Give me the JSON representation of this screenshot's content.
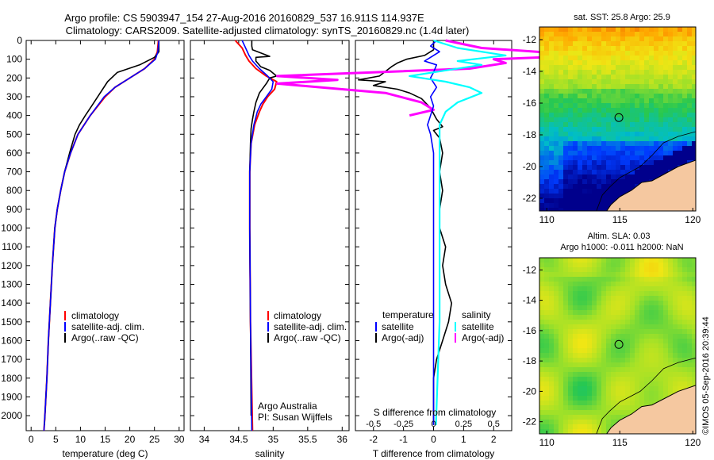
{
  "header": {
    "line1": "Argo profile: CS 5903947_154 27-Aug-2016 20160829_537 16.911S 114.937E",
    "line2": "Climatology: CARS2009. Satellite-adjusted climatology: synTS_20160829.nc (1.4d later)"
  },
  "colors": {
    "climatology": "#ff0000",
    "satellite": "#0000ff",
    "argo": "#000000",
    "sal_satellite": "#00ffff",
    "sal_argo": "#ff00ff",
    "land": "#f5c8a0"
  },
  "chart_data": [
    {
      "type": "line",
      "xlabel": "temperature (deg C)",
      "ylabel": "",
      "xlim": [
        -1,
        31
      ],
      "ylim": [
        2080,
        0
      ],
      "xticks": [
        "0",
        "5",
        "10",
        "15",
        "20",
        "25",
        "30"
      ],
      "yticks": [
        "0",
        "100",
        "200",
        "300",
        "400",
        "500",
        "600",
        "700",
        "800",
        "900",
        "1000",
        "1100",
        "1200",
        "1300",
        "1400",
        "1500",
        "1600",
        "1700",
        "1800",
        "1900",
        "2000"
      ],
      "legend": [
        "climatology",
        "satellite-adj. clim.",
        "Argo(..raw -QC)"
      ],
      "series": [
        {
          "name": "climatology",
          "points": [
            [
              25.8,
              0
            ],
            [
              25.6,
              60
            ],
            [
              25.0,
              100
            ],
            [
              23.0,
              150
            ],
            [
              20.0,
              200
            ],
            [
              17.0,
              250
            ],
            [
              15.0,
              300
            ],
            [
              12.0,
              400
            ],
            [
              9.5,
              500
            ],
            [
              8.0,
              600
            ],
            [
              6.8,
              700
            ],
            [
              6.0,
              800
            ],
            [
              5.3,
              900
            ],
            [
              4.8,
              1000
            ],
            [
              4.3,
              1200
            ],
            [
              3.9,
              1400
            ],
            [
              3.5,
              1600
            ],
            [
              3.2,
              1800
            ],
            [
              2.8,
              2000
            ],
            [
              2.6,
              2080
            ]
          ]
        },
        {
          "name": "satellite-adj. clim.",
          "points": [
            [
              25.9,
              0
            ],
            [
              25.7,
              60
            ],
            [
              25.2,
              100
            ],
            [
              23.0,
              150
            ],
            [
              20.0,
              200
            ],
            [
              17.0,
              250
            ],
            [
              14.8,
              300
            ],
            [
              12.0,
              400
            ],
            [
              9.5,
              500
            ],
            [
              8.0,
              600
            ],
            [
              6.8,
              700
            ],
            [
              6.0,
              800
            ],
            [
              5.3,
              900
            ],
            [
              4.8,
              1000
            ],
            [
              4.3,
              1200
            ],
            [
              3.9,
              1400
            ],
            [
              3.5,
              1600
            ],
            [
              3.2,
              1800
            ],
            [
              2.8,
              2000
            ],
            [
              2.6,
              2080
            ]
          ]
        },
        {
          "name": "Argo(..raw -QC)",
          "points": [
            [
              25.9,
              0
            ],
            [
              25.9,
              60
            ],
            [
              25.0,
              90
            ],
            [
              22.0,
              130
            ],
            [
              17.5,
              170
            ],
            [
              15.5,
              220
            ],
            [
              14.0,
              280
            ],
            [
              12.5,
              340
            ],
            [
              11.0,
              400
            ],
            [
              9.8,
              450
            ],
            [
              8.9,
              500
            ],
            [
              7.8,
              600
            ],
            [
              6.8,
              700
            ],
            [
              6.0,
              800
            ],
            [
              5.3,
              900
            ],
            [
              4.8,
              1000
            ],
            [
              4.3,
              1200
            ],
            [
              3.9,
              1400
            ],
            [
              3.5,
              1600
            ],
            [
              3.2,
              1800
            ],
            [
              2.8,
              2000
            ],
            [
              2.7,
              2050
            ]
          ]
        }
      ]
    },
    {
      "type": "line",
      "xlabel": "salinity",
      "xlim": [
        33.8,
        36.1
      ],
      "ylim": [
        2080,
        0
      ],
      "xticks": [
        "34",
        "34.5",
        "35",
        "35.5",
        "36"
      ],
      "legend": [
        "climatology",
        "satellite-adj. clim.",
        "Argo(..raw -QC)"
      ],
      "annotations": [
        "Argo Australia",
        "PI: Susan Wijffels"
      ],
      "series": [
        {
          "name": "climatology",
          "points": [
            [
              34.45,
              0
            ],
            [
              34.55,
              40
            ],
            [
              34.6,
              80
            ],
            [
              34.65,
              110
            ],
            [
              34.75,
              150
            ],
            [
              34.9,
              190
            ],
            [
              35.05,
              220
            ],
            [
              35.02,
              260
            ],
            [
              34.92,
              300
            ],
            [
              34.85,
              340
            ],
            [
              34.8,
              380
            ],
            [
              34.73,
              450
            ],
            [
              34.68,
              550
            ],
            [
              34.66,
              700
            ],
            [
              34.66,
              1000
            ],
            [
              34.67,
              1500
            ],
            [
              34.7,
              2080
            ]
          ]
        },
        {
          "name": "satellite-adj. clim.",
          "points": [
            [
              34.55,
              0
            ],
            [
              34.6,
              40
            ],
            [
              34.65,
              80
            ],
            [
              34.7,
              110
            ],
            [
              34.8,
              150
            ],
            [
              34.92,
              190
            ],
            [
              35.0,
              220
            ],
            [
              34.98,
              260
            ],
            [
              34.9,
              300
            ],
            [
              34.82,
              340
            ],
            [
              34.77,
              380
            ],
            [
              34.72,
              450
            ],
            [
              34.68,
              550
            ],
            [
              34.66,
              700
            ],
            [
              34.66,
              1000
            ],
            [
              34.67,
              1500
            ],
            [
              34.69,
              2080
            ]
          ]
        },
        {
          "name": "Argo(..raw -QC)",
          "points": [
            [
              34.69,
              0
            ],
            [
              34.69,
              30
            ],
            [
              34.7,
              50
            ],
            [
              34.95,
              85
            ],
            [
              34.75,
              90
            ],
            [
              34.75,
              110
            ],
            [
              34.82,
              140
            ],
            [
              34.95,
              160
            ],
            [
              35.05,
              190
            ],
            [
              34.95,
              200
            ],
            [
              34.9,
              230
            ],
            [
              34.8,
              280
            ],
            [
              34.75,
              330
            ],
            [
              34.72,
              380
            ],
            [
              34.7,
              420
            ],
            [
              34.68,
              470
            ],
            [
              34.67,
              550
            ],
            [
              34.66,
              700
            ],
            [
              34.66,
              1000
            ],
            [
              34.67,
              1500
            ],
            [
              34.68,
              2000
            ]
          ]
        }
      ]
    },
    {
      "type": "line",
      "xlabel": "T difference from climatology",
      "toplabel": "S difference from climatology",
      "xlim": [
        -2.6,
        2.6
      ],
      "ylim": [
        2080,
        0
      ],
      "xticks": [
        "-2",
        "-1",
        "0",
        "1",
        "2"
      ],
      "sticks": [
        "-0.5",
        "-0.25",
        "0",
        "0.25",
        "0.5"
      ],
      "legend_temperature": [
        "temperature",
        "satellite",
        "Argo(-adj)"
      ],
      "legend_salinity": [
        "salinity",
        "satellite",
        "Argo(-adj)"
      ],
      "series": [
        {
          "name": "satellite",
          "group": "temperature",
          "points": [
            [
              0.1,
              0
            ],
            [
              -0.1,
              30
            ],
            [
              0.2,
              60
            ],
            [
              -0.1,
              90
            ],
            [
              -0.3,
              110
            ],
            [
              0.1,
              130
            ],
            [
              0.0,
              170
            ],
            [
              -0.1,
              200
            ],
            [
              0.1,
              250
            ],
            [
              -0.1,
              300
            ],
            [
              0.0,
              350
            ],
            [
              -0.1,
              400
            ],
            [
              -0.2,
              450
            ],
            [
              -0.1,
              500
            ],
            [
              0.0,
              600
            ],
            [
              0.0,
              800
            ],
            [
              0.0,
              1000
            ],
            [
              0.0,
              1500
            ],
            [
              0.0,
              2050
            ]
          ]
        },
        {
          "name": "Argo(-adj)",
          "group": "temperature",
          "points": [
            [
              0.0,
              0
            ],
            [
              0.0,
              50
            ],
            [
              -0.3,
              80
            ],
            [
              -0.9,
              100
            ],
            [
              -1.2,
              120
            ],
            [
              -1.4,
              140
            ],
            [
              -1.8,
              190
            ],
            [
              -2.5,
              210
            ],
            [
              -1.6,
              220
            ],
            [
              -2.0,
              240
            ],
            [
              -1.2,
              260
            ],
            [
              -0.8,
              280
            ],
            [
              -0.4,
              310
            ],
            [
              -0.1,
              360
            ],
            [
              0.1,
              420
            ],
            [
              0.3,
              460
            ],
            [
              0.0,
              480
            ],
            [
              0.2,
              520
            ],
            [
              0.3,
              600
            ],
            [
              0.2,
              700
            ],
            [
              0.3,
              800
            ],
            [
              0.2,
              900
            ],
            [
              0.2,
              1000
            ],
            [
              0.4,
              1100
            ],
            [
              0.3,
              1200
            ],
            [
              0.4,
              1300
            ],
            [
              0.6,
              1400
            ],
            [
              0.5,
              1500
            ],
            [
              0.3,
              1600
            ],
            [
              0.1,
              1700
            ],
            [
              0.0,
              1800
            ],
            [
              0.0,
              2050
            ]
          ]
        },
        {
          "name": "satellite",
          "group": "salinity",
          "points": [
            [
              0.0,
              0
            ],
            [
              0.2,
              40
            ],
            [
              0.6,
              80
            ],
            [
              0.2,
              110
            ],
            [
              0.4,
              130
            ],
            [
              0.1,
              160
            ],
            [
              -0.2,
              190
            ],
            [
              0.1,
              220
            ],
            [
              0.3,
              250
            ],
            [
              0.4,
              280
            ],
            [
              0.2,
              330
            ],
            [
              0.1,
              380
            ],
            [
              0.05,
              450
            ],
            [
              0.05,
              600
            ],
            [
              0.05,
              1000
            ],
            [
              0.05,
              1500
            ],
            [
              0.02,
              2050
            ]
          ]
        },
        {
          "name": "Argo(-adj)",
          "group": "salinity",
          "points": [
            [
              0.1,
              0
            ],
            [
              0.4,
              40
            ],
            [
              1.3,
              80
            ],
            [
              0.5,
              100
            ],
            [
              0.6,
              120
            ],
            [
              0.3,
              150
            ],
            [
              -1.3,
              190
            ],
            [
              -0.8,
              210
            ],
            [
              -1.3,
              230
            ],
            [
              -0.4,
              280
            ],
            [
              -0.1,
              330
            ],
            [
              0.0,
              370
            ],
            [
              -0.2,
              400
            ]
          ]
        }
      ]
    }
  ],
  "maps": {
    "top": {
      "title": "sat. SST: 25.8 Argo: 25.9",
      "xlim": [
        109.5,
        120.2
      ],
      "ylim": [
        -22.8,
        -11.2
      ],
      "xticks": [
        "110",
        "115",
        "120"
      ],
      "yticks": [
        "-12",
        "-14",
        "-16",
        "-18",
        "-20",
        "-22"
      ],
      "argo_position": [
        114.937,
        -16.911
      ]
    },
    "bottom": {
      "title1": "Altim. SLA: 0.03",
      "title2": "Argo h1000: -0.011 h2000: NaN",
      "xlim": [
        109.5,
        120.2
      ],
      "ylim": [
        -22.8,
        -11.2
      ],
      "xticks": [
        "110",
        "115",
        "120"
      ],
      "yticks": [
        "-12",
        "-14",
        "-16",
        "-18",
        "-20",
        "-22"
      ],
      "argo_position": [
        114.937,
        -16.911
      ]
    },
    "coast": [
      [
        120.2,
        -19.6
      ],
      [
        119.0,
        -20.0
      ],
      [
        118.0,
        -20.5
      ],
      [
        117.2,
        -20.9
      ],
      [
        116.5,
        -21.0
      ],
      [
        115.8,
        -21.5
      ],
      [
        115.0,
        -21.9
      ],
      [
        114.4,
        -22.4
      ],
      [
        114.1,
        -22.8
      ]
    ],
    "isobath": [
      [
        120.2,
        -17.8
      ],
      [
        119.0,
        -18.1
      ],
      [
        118.0,
        -18.5
      ],
      [
        117.2,
        -19.3
      ],
      [
        116.4,
        -20.0
      ],
      [
        115.6,
        -20.4
      ],
      [
        115.0,
        -20.7
      ],
      [
        114.3,
        -21.3
      ],
      [
        113.8,
        -21.8
      ],
      [
        113.4,
        -22.8
      ]
    ]
  },
  "credit": "©IMOS 05-Sep-2016 20:39:44"
}
